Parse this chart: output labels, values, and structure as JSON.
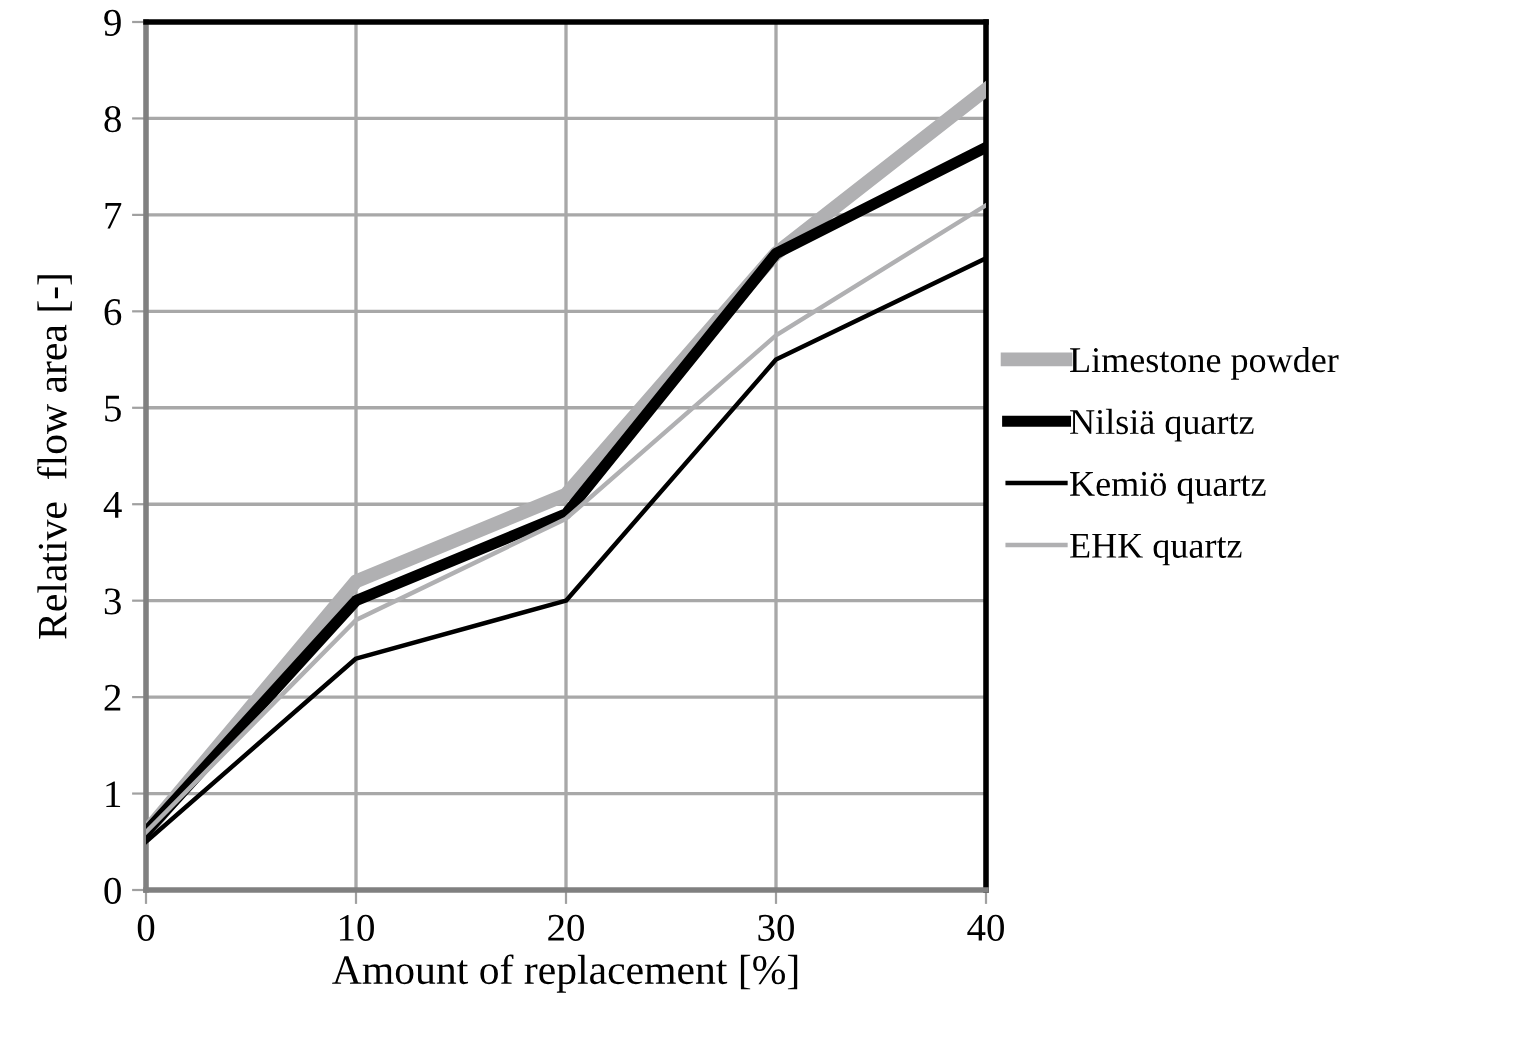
{
  "chart_data": {
    "type": "line",
    "xlabel": "Amount of replacement [%]",
    "ylabel": "Relative  flow area [-]",
    "x": [
      0,
      10,
      20,
      30,
      40
    ],
    "series": [
      {
        "name": "Limestone powder",
        "color": "#b0b0b2",
        "values": [
          0.6,
          3.2,
          4.1,
          6.6,
          8.3
        ]
      },
      {
        "name": "Nilsiä quartz",
        "color": "#000000",
        "values": [
          0.6,
          3.0,
          3.9,
          6.6,
          7.7
        ]
      },
      {
        "name": "Kemiö quartz",
        "color": "#000000",
        "values": [
          0.5,
          2.4,
          3.0,
          5.5,
          6.55
        ]
      },
      {
        "name": "EHK quartz",
        "color": "#b0b0b2",
        "values": [
          0.6,
          2.8,
          3.85,
          5.75,
          7.1
        ]
      }
    ],
    "xlim": [
      0,
      40
    ],
    "xticks": [
      0,
      10,
      20,
      30,
      40
    ],
    "ylim": [
      0,
      9
    ],
    "yticks": [
      0,
      1,
      2,
      3,
      4,
      5,
      6,
      7,
      8,
      9
    ],
    "grid": true,
    "legend": "right",
    "marker": "none",
    "line_style": "solid"
  }
}
